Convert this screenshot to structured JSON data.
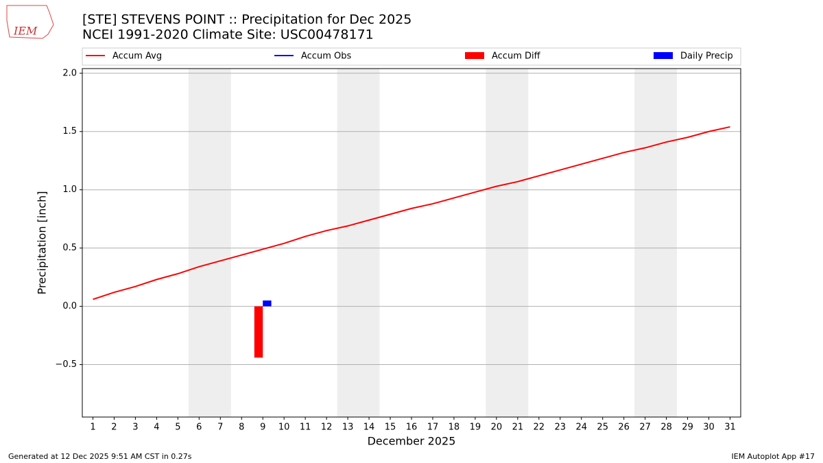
{
  "logo": "IEM",
  "footer_left": "Generated at 12 Dec 2025 9:51 AM CST in 0.27s",
  "footer_right": "IEM Autoplot App #17",
  "chart_data": {
    "type": "line",
    "title": "[STE] STEVENS POINT :: Precipitation for Dec 2025",
    "subtitle": "NCEI 1991-2020 Climate Site: USC00478171",
    "x_label": "December 2025",
    "y_label": "Precipitation [inch]",
    "x": [
      1,
      2,
      3,
      4,
      5,
      6,
      7,
      8,
      9,
      10,
      11,
      12,
      13,
      14,
      15,
      16,
      17,
      18,
      19,
      20,
      21,
      22,
      23,
      24,
      25,
      26,
      27,
      28,
      29,
      30,
      31
    ],
    "xlim": [
      0.5,
      31.5
    ],
    "xticks": [
      1,
      2,
      3,
      4,
      5,
      6,
      7,
      8,
      9,
      10,
      11,
      12,
      13,
      14,
      15,
      16,
      17,
      18,
      19,
      20,
      21,
      22,
      23,
      24,
      25,
      26,
      27,
      28,
      29,
      30,
      31
    ],
    "ylim": [
      -0.95,
      2.04
    ],
    "yticks": [
      {
        "value": -0.5,
        "label": "−0.5"
      },
      {
        "value": 0,
        "label": "0.0"
      },
      0.5,
      {
        "value": 1,
        "label": "1.0"
      },
      1.5,
      {
        "value": 2,
        "label": "2.0"
      }
    ],
    "grid": true,
    "weekend_spans": [
      [
        5.5,
        7.5
      ],
      [
        12.5,
        14.5
      ],
      [
        19.5,
        21.5
      ],
      [
        26.5,
        28.5
      ]
    ],
    "series": [
      {
        "name": "Accum Avg",
        "color": "#ff0000",
        "kind": "line",
        "values": [
          0.06,
          0.12,
          0.17,
          0.23,
          0.28,
          0.34,
          0.39,
          0.44,
          0.49,
          0.54,
          0.6,
          0.65,
          0.69,
          0.74,
          0.79,
          0.84,
          0.88,
          0.93,
          0.98,
          1.03,
          1.07,
          1.12,
          1.17,
          1.22,
          1.27,
          1.32,
          1.36,
          1.41,
          1.45,
          1.5,
          1.54
        ]
      },
      {
        "name": "Accum Obs",
        "color": "#0000ff",
        "kind": "line",
        "values": [
          null,
          null,
          null,
          null,
          null,
          null,
          null,
          null,
          null,
          null,
          null,
          null,
          null,
          null,
          null,
          null,
          null,
          null,
          null,
          null,
          null,
          null,
          null,
          null,
          null,
          null,
          null,
          null,
          null,
          null,
          null
        ]
      },
      {
        "name": "Accum Diff",
        "color": "#ff0000",
        "kind": "bar",
        "values": [
          null,
          null,
          null,
          null,
          null,
          null,
          null,
          null,
          -0.44,
          null,
          null,
          null,
          null,
          null,
          null,
          null,
          null,
          null,
          null,
          null,
          null,
          null,
          null,
          null,
          null,
          null,
          null,
          null,
          null,
          null,
          null
        ]
      },
      {
        "name": "Daily Precip",
        "color": "#0000ff",
        "kind": "bar",
        "values": [
          null,
          null,
          null,
          null,
          null,
          null,
          null,
          null,
          0.05,
          null,
          null,
          null,
          null,
          null,
          null,
          null,
          null,
          null,
          null,
          null,
          null,
          null,
          null,
          null,
          null,
          null,
          null,
          null,
          null,
          null,
          null
        ]
      }
    ]
  }
}
